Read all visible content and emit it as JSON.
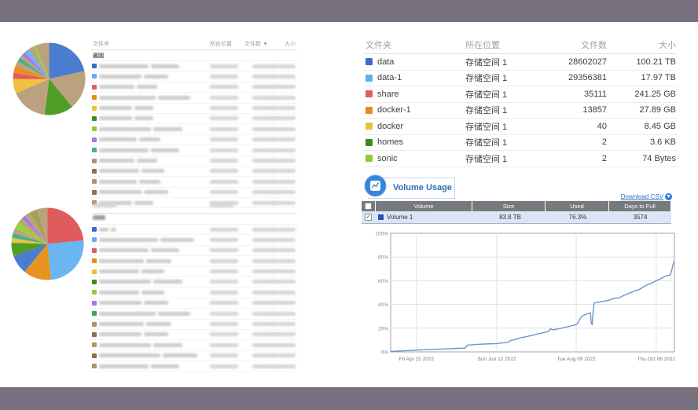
{
  "frame": {
    "band_color": "#77717f"
  },
  "left": {
    "table_top": {
      "headers": {
        "folder": "文件夹",
        "location": "所在位置",
        "count": "文件数",
        "sort_indicator": "▼",
        "size": "大小"
      },
      "back_link": "返回",
      "blurred": true,
      "blur_rows": [
        {
          "color": "#3b6bc7",
          "name_width": 105
        },
        {
          "color": "#62aef0",
          "name_width": 90
        },
        {
          "color": "#e35d5e",
          "name_width": 75
        },
        {
          "color": "#e98a1f",
          "name_width": 120
        },
        {
          "color": "#edbf35",
          "name_width": 70
        },
        {
          "color": "#3a8d1c",
          "name_width": 70
        },
        {
          "color": "#95c836",
          "name_width": 110
        },
        {
          "color": "#a678e8",
          "name_width": 80
        },
        {
          "color": "#45b08c",
          "name_width": 105
        },
        {
          "color": "#b59366",
          "name_width": 75
        },
        {
          "color": "#8f6f4e",
          "name_width": 85
        },
        {
          "color": "#b59366",
          "name_width": 80
        },
        {
          "color": "#8f6f4e",
          "name_width": 90
        },
        {
          "color": "#b59366",
          "name_width": 70
        }
      ]
    },
    "table_bottom": {
      "header_blurred": true,
      "blurred": true,
      "blur_rows": [
        {
          "color": "#3b6bc7",
          "name_width": 20
        },
        {
          "color": "#62aef0",
          "name_width": 125
        },
        {
          "color": "#e35d5e",
          "name_width": 105
        },
        {
          "color": "#e98a1f",
          "name_width": 95
        },
        {
          "color": "#edbf35",
          "name_width": 85
        },
        {
          "color": "#3a8d1c",
          "name_width": 110
        },
        {
          "color": "#95c836",
          "name_width": 85
        },
        {
          "color": "#a678e8",
          "name_width": 90
        },
        {
          "color": "#34a853",
          "name_width": 120
        },
        {
          "color": "#b59366",
          "name_width": 95
        },
        {
          "color": "#8f6f4e",
          "name_width": 90
        },
        {
          "color": "#b59366",
          "name_width": 110
        },
        {
          "color": "#8f6f4e",
          "name_width": 130
        },
        {
          "color": "#b59366",
          "name_width": 105
        }
      ]
    }
  },
  "right": {
    "folder_table": {
      "headers": {
        "folder": "文件夹",
        "location": "所在位置",
        "count": "文件数",
        "size": "大小"
      },
      "rows": [
        {
          "name": "data",
          "color": "#3b6bc7",
          "location": "存储空间 1",
          "count": "28602027",
          "size": "100.21 TB"
        },
        {
          "name": "data-1",
          "color": "#62aef0",
          "location": "存储空间 1",
          "count": "29356381",
          "size": "17.97 TB"
        },
        {
          "name": "share",
          "color": "#e35d5e",
          "location": "存储空间 1",
          "count": "35111",
          "size": "241.25 GB"
        },
        {
          "name": "docker-1",
          "color": "#e98a1f",
          "location": "存储空间 1",
          "count": "13857",
          "size": "27.89 GB"
        },
        {
          "name": "docker",
          "color": "#edbf35",
          "location": "存储空间 1",
          "count": "40",
          "size": "8.45 GB"
        },
        {
          "name": "homes",
          "color": "#3a8d1c",
          "location": "存储空间 1",
          "count": "2",
          "size": "3.6 KB"
        },
        {
          "name": "sonic",
          "color": "#95c836",
          "location": "存储空间 1",
          "count": "2",
          "size": "74 Bytes"
        }
      ]
    },
    "volume_usage": {
      "title": "Volume Usage",
      "download_label": "Download CSV",
      "table": {
        "headers": [
          "Volume",
          "Size",
          "Used",
          "Days to Full"
        ],
        "row": {
          "checked": true,
          "color": "#2b52ae",
          "name": "Volume 1",
          "size": "83.8 TB",
          "used": "76.3%",
          "days_to_full": "3574"
        }
      }
    }
  },
  "chart_data": [
    {
      "type": "pie",
      "id": "pie-top-left",
      "title": "",
      "slices": [
        {
          "value": 21.5,
          "color": "#4a7dd0"
        },
        {
          "value": 17.5,
          "color": "#bba27e"
        },
        {
          "value": 13.0,
          "color": "#4f9e27"
        },
        {
          "value": 16.5,
          "color": "#bba27e"
        },
        {
          "value": 6.5,
          "color": "#f0c13d"
        },
        {
          "value": 2.8,
          "color": "#e05c5c"
        },
        {
          "value": 3.2,
          "color": "#ef8a20"
        },
        {
          "value": 2.2,
          "color": "#bba27e"
        },
        {
          "value": 1.8,
          "color": "#45b08c"
        },
        {
          "value": 1.6,
          "color": "#bba27e"
        },
        {
          "value": 1.8,
          "color": "#a678e8"
        },
        {
          "value": 2.0,
          "color": "#69b6f2"
        },
        {
          "value": 2.2,
          "color": "#bba27e"
        },
        {
          "value": 1.2,
          "color": "#9ccc3f"
        },
        {
          "value": 6.2,
          "color": "#bba27e"
        }
      ]
    },
    {
      "type": "pie",
      "id": "pie-bottom-left",
      "title": "",
      "slices": [
        {
          "value": 23.5,
          "color": "#e05c5c"
        },
        {
          "value": 25.0,
          "color": "#69b6f2"
        },
        {
          "value": 12.5,
          "color": "#e6941d"
        },
        {
          "value": 8.5,
          "color": "#4a7dd0"
        },
        {
          "value": 6.0,
          "color": "#4f9e27"
        },
        {
          "value": 2.2,
          "color": "#f0c13d"
        },
        {
          "value": 2.2,
          "color": "#45b08c"
        },
        {
          "value": 2.2,
          "color": "#bba27e"
        },
        {
          "value": 3.2,
          "color": "#9ccc3f"
        },
        {
          "value": 2.2,
          "color": "#bba27e"
        },
        {
          "value": 1.8,
          "color": "#a678e8"
        },
        {
          "value": 2.5,
          "color": "#bba27e"
        },
        {
          "value": 3.5,
          "color": "#a89f55"
        },
        {
          "value": 4.7,
          "color": "#bba27e"
        }
      ]
    },
    {
      "type": "line",
      "id": "volume-usage-history",
      "series_name": "Volume 1",
      "line_color": "#6f94c9",
      "ylim": [
        0,
        100
      ],
      "yticks": [
        "0%",
        "20%",
        "40%",
        "60%",
        "80%",
        "100%"
      ],
      "xticks": [
        {
          "f": 0.091,
          "label": "Fri Apr 15 2022"
        },
        {
          "f": 0.374,
          "label": "Sun Jun 12 2022"
        },
        {
          "f": 0.654,
          "label": "Tue Aug 09 2022"
        },
        {
          "f": 0.936,
          "label": "Thu Oct 06 2022"
        }
      ],
      "points": [
        [
          0.0,
          0.4
        ],
        [
          0.02,
          0.6
        ],
        [
          0.045,
          0.9
        ],
        [
          0.07,
          1.2
        ],
        [
          0.091,
          1.5
        ],
        [
          0.12,
          1.8
        ],
        [
          0.15,
          2.1
        ],
        [
          0.18,
          2.4
        ],
        [
          0.21,
          2.7
        ],
        [
          0.24,
          3.0
        ],
        [
          0.262,
          3.2
        ],
        [
          0.27,
          5.7
        ],
        [
          0.3,
          6.2
        ],
        [
          0.33,
          6.6
        ],
        [
          0.374,
          7.0
        ],
        [
          0.4,
          7.7
        ],
        [
          0.415,
          8.1
        ],
        [
          0.424,
          9.8
        ],
        [
          0.44,
          10.4
        ],
        [
          0.452,
          11.5
        ],
        [
          0.468,
          12.3
        ],
        [
          0.488,
          13.4
        ],
        [
          0.508,
          14.5
        ],
        [
          0.525,
          15.5
        ],
        [
          0.545,
          16.5
        ],
        [
          0.556,
          17.3
        ],
        [
          0.563,
          19.4
        ],
        [
          0.573,
          18.6
        ],
        [
          0.59,
          19.4
        ],
        [
          0.61,
          20.4
        ],
        [
          0.63,
          21.5
        ],
        [
          0.646,
          22.5
        ],
        [
          0.655,
          23.3
        ],
        [
          0.662,
          25.2
        ],
        [
          0.67,
          29.0
        ],
        [
          0.678,
          30.8
        ],
        [
          0.69,
          31.8
        ],
        [
          0.7,
          32.7
        ],
        [
          0.704,
          32.9
        ],
        [
          0.707,
          24.5
        ],
        [
          0.71,
          23.0
        ],
        [
          0.713,
          32.0
        ],
        [
          0.717,
          41.2
        ],
        [
          0.735,
          41.9
        ],
        [
          0.755,
          42.9
        ],
        [
          0.768,
          43.3
        ],
        [
          0.78,
          44.7
        ],
        [
          0.795,
          45.3
        ],
        [
          0.806,
          45.6
        ],
        [
          0.82,
          47.4
        ],
        [
          0.835,
          48.9
        ],
        [
          0.85,
          50.3
        ],
        [
          0.863,
          51.7
        ],
        [
          0.875,
          52.4
        ],
        [
          0.888,
          54.4
        ],
        [
          0.902,
          56.3
        ],
        [
          0.915,
          57.5
        ],
        [
          0.928,
          59.0
        ],
        [
          0.94,
          60.4
        ],
        [
          0.95,
          61.5
        ],
        [
          0.958,
          62.4
        ],
        [
          0.965,
          63.6
        ],
        [
          0.972,
          64.2
        ],
        [
          0.982,
          64.5
        ],
        [
          0.987,
          65.8
        ],
        [
          0.991,
          69.5
        ],
        [
          0.995,
          73.5
        ],
        [
          0.998,
          75.5
        ],
        [
          1.0,
          76.3
        ]
      ]
    }
  ]
}
